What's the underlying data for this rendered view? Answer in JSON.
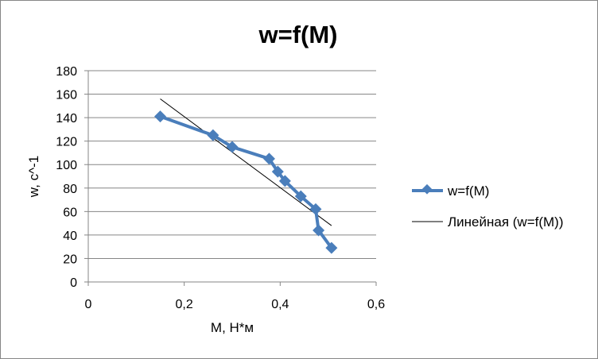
{
  "chart_data": {
    "type": "scatter",
    "title": "w=f(M)",
    "xlabel": "M, Н*м",
    "ylabel": "w, с^-1",
    "xlim": [
      0,
      0.6
    ],
    "ylim": [
      0,
      180
    ],
    "xticks": [
      0,
      0.2,
      0.4,
      0.6
    ],
    "xtick_labels": [
      "0",
      "0,2",
      "0,4",
      "0,6"
    ],
    "yticks": [
      0,
      20,
      40,
      60,
      80,
      100,
      120,
      140,
      160,
      180
    ],
    "ytick_labels": [
      "0",
      "20",
      "40",
      "60",
      "80",
      "100",
      "120",
      "140",
      "160",
      "180"
    ],
    "grid": "horizontal",
    "legend_position": "right",
    "series": [
      {
        "name": "w=f(M)",
        "color": "#4a7ebb",
        "marker": "diamond",
        "line": "solid",
        "x": [
          0.15,
          0.26,
          0.3,
          0.377,
          0.395,
          0.41,
          0.443,
          0.474,
          0.48,
          0.507
        ],
        "y": [
          141,
          125,
          115,
          105,
          94,
          86,
          73,
          62,
          44,
          29
        ]
      },
      {
        "name": "Линейная (w=f(M))",
        "color": "#000000",
        "marker": "none",
        "line": "trendline",
        "x": [
          0.15,
          0.507
        ],
        "y": [
          156,
          48
        ]
      }
    ]
  }
}
